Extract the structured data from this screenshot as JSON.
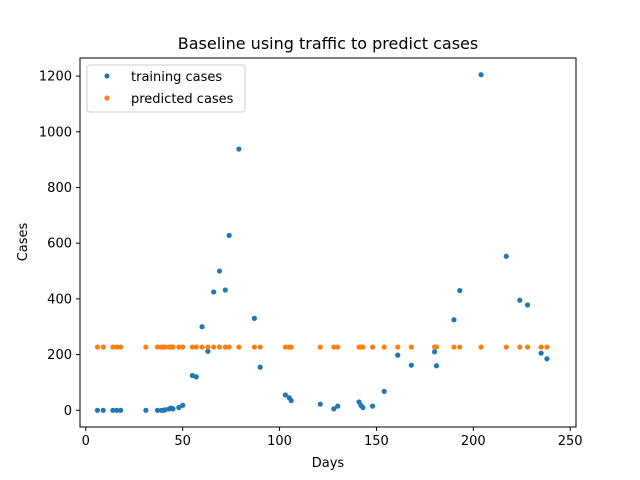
{
  "chart_data": {
    "type": "scatter",
    "title": "Baseline using traffic to predict cases",
    "xlabel": "Days",
    "ylabel": "Cases",
    "xlim": [
      -3,
      253
    ],
    "ylim": [
      -60,
      1265
    ],
    "xticks": [
      0,
      50,
      100,
      150,
      200,
      250
    ],
    "yticks": [
      0,
      200,
      400,
      600,
      800,
      1000,
      1200
    ],
    "grid": false,
    "legend_position": "top-left",
    "series": [
      {
        "name": "training cases",
        "color": "#1f77b4",
        "points": [
          [
            6,
            0
          ],
          [
            9,
            0
          ],
          [
            14,
            0
          ],
          [
            16,
            0
          ],
          [
            18,
            0
          ],
          [
            31,
            0
          ],
          [
            37,
            0
          ],
          [
            39,
            0
          ],
          [
            40,
            0
          ],
          [
            41,
            2
          ],
          [
            43,
            5
          ],
          [
            44,
            8
          ],
          [
            45,
            5
          ],
          [
            48,
            10
          ],
          [
            50,
            18
          ],
          [
            55,
            125
          ],
          [
            57,
            120
          ],
          [
            60,
            300
          ],
          [
            63,
            212
          ],
          [
            66,
            425
          ],
          [
            69,
            500
          ],
          [
            72,
            432
          ],
          [
            74,
            628
          ],
          [
            79,
            938
          ],
          [
            87,
            330
          ],
          [
            90,
            155
          ],
          [
            103,
            55
          ],
          [
            105,
            45
          ],
          [
            106,
            35
          ],
          [
            121,
            22
          ],
          [
            128,
            5
          ],
          [
            130,
            15
          ],
          [
            141,
            30
          ],
          [
            142,
            18
          ],
          [
            143,
            10
          ],
          [
            148,
            15
          ],
          [
            154,
            68
          ],
          [
            161,
            198
          ],
          [
            168,
            162
          ],
          [
            180,
            210
          ],
          [
            181,
            160
          ],
          [
            190,
            325
          ],
          [
            193,
            430
          ],
          [
            204,
            1205
          ],
          [
            217,
            553
          ],
          [
            224,
            395
          ],
          [
            228,
            378
          ],
          [
            235,
            205
          ],
          [
            238,
            185
          ]
        ]
      },
      {
        "name": "predicted cases",
        "color": "#ff7f0e",
        "points": [
          [
            6,
            227
          ],
          [
            9,
            227
          ],
          [
            14,
            227
          ],
          [
            16,
            227
          ],
          [
            18,
            227
          ],
          [
            31,
            227
          ],
          [
            37,
            227
          ],
          [
            39,
            227
          ],
          [
            40,
            227
          ],
          [
            41,
            227
          ],
          [
            43,
            227
          ],
          [
            44,
            227
          ],
          [
            45,
            227
          ],
          [
            48,
            227
          ],
          [
            50,
            227
          ],
          [
            55,
            227
          ],
          [
            57,
            227
          ],
          [
            60,
            227
          ],
          [
            63,
            227
          ],
          [
            66,
            227
          ],
          [
            69,
            227
          ],
          [
            72,
            227
          ],
          [
            74,
            227
          ],
          [
            79,
            227
          ],
          [
            87,
            227
          ],
          [
            90,
            227
          ],
          [
            103,
            227
          ],
          [
            105,
            227
          ],
          [
            106,
            227
          ],
          [
            121,
            227
          ],
          [
            128,
            227
          ],
          [
            130,
            227
          ],
          [
            141,
            227
          ],
          [
            142,
            227
          ],
          [
            143,
            227
          ],
          [
            148,
            227
          ],
          [
            154,
            227
          ],
          [
            161,
            227
          ],
          [
            168,
            227
          ],
          [
            180,
            227
          ],
          [
            181,
            227
          ],
          [
            190,
            227
          ],
          [
            193,
            227
          ],
          [
            204,
            227
          ],
          [
            217,
            227
          ],
          [
            224,
            227
          ],
          [
            228,
            227
          ],
          [
            235,
            227
          ],
          [
            238,
            227
          ]
        ]
      }
    ]
  }
}
